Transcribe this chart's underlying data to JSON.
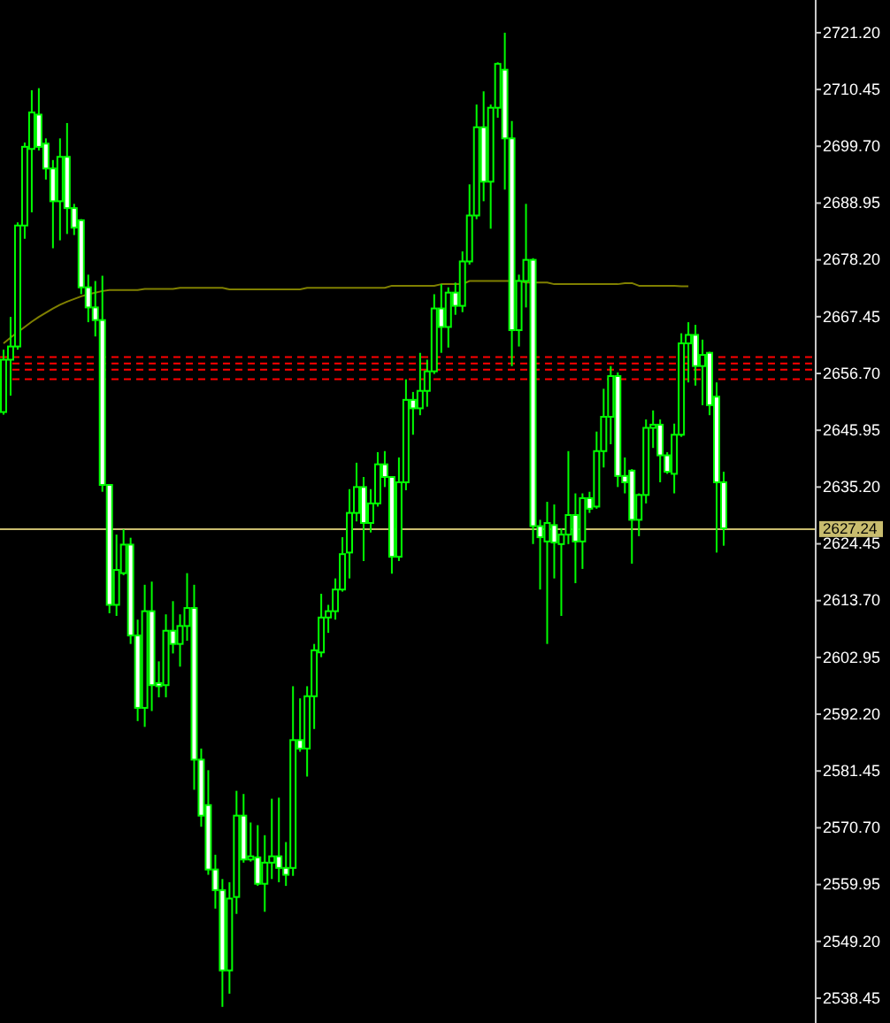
{
  "chart_data": {
    "type": "candlestick",
    "color": "#00ff00",
    "categories": [
      null,
      null,
      null,
      null,
      null,
      null,
      null,
      null,
      null,
      null,
      null,
      null,
      null,
      null,
      null,
      null,
      null,
      null,
      null,
      null,
      null,
      null,
      null,
      null,
      null,
      null,
      null,
      null,
      null,
      null,
      null,
      null,
      null,
      null,
      null,
      null,
      null,
      null,
      null,
      null,
      null,
      null,
      null,
      null,
      null,
      null,
      null,
      null,
      null,
      null,
      null,
      null,
      null,
      null,
      null,
      null,
      null,
      null,
      null,
      null,
      null,
      null,
      null,
      null,
      null,
      null,
      null,
      null,
      null,
      null,
      null,
      null,
      null,
      null,
      null,
      null,
      null,
      null,
      null,
      null,
      null,
      null,
      null,
      null,
      null,
      null,
      null,
      null,
      null,
      null,
      null,
      null,
      null,
      null,
      null,
      null,
      null,
      null,
      null,
      null,
      null,
      null,
      null
    ],
    "ohlc": [
      [
        2649.4,
        2661.2,
        2648.9,
        2659.3
      ],
      [
        2659.3,
        2667.4,
        2652.5,
        2661.8
      ],
      [
        2661.8,
        2685.3,
        2661.2,
        2684.7
      ],
      [
        2684.7,
        2700.4,
        2682.2,
        2699.6
      ],
      [
        2699.2,
        2710.3,
        2687.2,
        2706.1
      ],
      [
        2705.7,
        2710.7,
        2698.9,
        2699.6
      ],
      [
        2700.2,
        2701.2,
        2693.4,
        2695.5
      ],
      [
        2695.5,
        2697.1,
        2680.4,
        2689.3
      ],
      [
        2689.3,
        2701.2,
        2681.9,
        2697.7
      ],
      [
        2697.7,
        2704.1,
        2683.1,
        2688.0
      ],
      [
        2688.0,
        2688.8,
        2682.9,
        2684.3
      ],
      [
        2685.7,
        2685.9,
        2671.7,
        2673.0
      ],
      [
        2673.0,
        2675.4,
        2666.4,
        2669.2
      ],
      [
        2669.2,
        2674.2,
        2663.7,
        2666.8
      ],
      [
        2666.8,
        2675.2,
        2634.3,
        2635.6
      ],
      [
        2635.6,
        2635.6,
        2611.3,
        2612.9
      ],
      [
        2612.9,
        2626.2,
        2610.8,
        2619.5
      ],
      [
        2618.9,
        2627.2,
        2618.5,
        2624.3
      ],
      [
        2624.3,
        2625.6,
        2605.5,
        2607.1
      ],
      [
        2607.1,
        2610.1,
        2590.9,
        2593.4
      ],
      [
        2593.4,
        2616.7,
        2589.8,
        2611.7
      ],
      [
        2611.7,
        2617.3,
        2592.8,
        2597.7
      ],
      [
        2598.1,
        2602.2,
        2595.4,
        2597.5
      ],
      [
        2597.7,
        2611.1,
        2595.4,
        2608.0
      ],
      [
        2608.0,
        2613.6,
        2603.7,
        2605.5
      ],
      [
        2605.5,
        2611.1,
        2601.2,
        2608.9
      ],
      [
        2608.9,
        2618.9,
        2606.1,
        2612.3
      ],
      [
        2612.3,
        2616.7,
        2577.9,
        2583.6
      ],
      [
        2583.6,
        2585.7,
        2570.9,
        2573.0
      ],
      [
        2575.0,
        2581.6,
        2561.8,
        2562.8
      ],
      [
        2562.8,
        2565.6,
        2555.4,
        2558.9
      ],
      [
        2558.9,
        2561.0,
        2536.8,
        2543.7
      ],
      [
        2543.7,
        2560.4,
        2539.3,
        2557.3
      ],
      [
        2557.6,
        2577.7,
        2554.4,
        2573.0
      ],
      [
        2573.0,
        2577.1,
        2564.1,
        2564.7
      ],
      [
        2564.7,
        2571.7,
        2564.3,
        2565.3
      ],
      [
        2565.1,
        2571.2,
        2559.7,
        2560.1
      ],
      [
        2560.1,
        2569.3,
        2554.8,
        2564.1
      ],
      [
        2564.1,
        2576.2,
        2561.0,
        2565.3
      ],
      [
        2565.3,
        2576.4,
        2560.4,
        2563.1
      ],
      [
        2563.1,
        2568.0,
        2559.7,
        2561.8
      ],
      [
        2563.1,
        2597.5,
        2561.6,
        2587.3
      ],
      [
        2587.3,
        2595.2,
        2585.1,
        2585.7
      ],
      [
        2585.7,
        2597.5,
        2580.4,
        2595.6
      ],
      [
        2595.6,
        2605.5,
        2589.4,
        2604.3
      ],
      [
        2603.9,
        2615.0,
        2603.0,
        2610.5
      ],
      [
        2610.5,
        2612.9,
        2607.6,
        2611.7
      ],
      [
        2611.7,
        2617.9,
        2610.1,
        2615.8
      ],
      [
        2615.8,
        2625.7,
        2615.4,
        2622.5
      ],
      [
        2622.8,
        2634.8,
        2617.9,
        2630.3
      ],
      [
        2630.3,
        2639.8,
        2628.7,
        2635.2
      ],
      [
        2635.2,
        2637.1,
        2621.2,
        2628.4
      ],
      [
        2628.4,
        2634.8,
        2626.6,
        2632.1
      ],
      [
        2632.1,
        2641.8,
        2631.5,
        2639.5
      ],
      [
        2639.5,
        2642.0,
        2635.2,
        2637.1
      ],
      [
        2637.1,
        2637.1,
        2618.8,
        2622.0
      ],
      [
        2622.0,
        2640.8,
        2621.2,
        2636.1
      ],
      [
        2636.1,
        2655.6,
        2634.6,
        2651.7
      ],
      [
        2651.7,
        2653.2,
        2645.1,
        2650.1
      ],
      [
        2650.1,
        2660.6,
        2648.8,
        2653.4
      ],
      [
        2653.4,
        2659.3,
        2650.4,
        2657.1
      ],
      [
        2657.1,
        2671.7,
        2656.6,
        2669.0
      ],
      [
        2669.0,
        2673.6,
        2660.6,
        2665.5
      ],
      [
        2665.5,
        2673.0,
        2661.6,
        2672.0
      ],
      [
        2672.0,
        2673.9,
        2667.8,
        2669.5
      ],
      [
        2669.5,
        2679.8,
        2668.3,
        2677.9
      ],
      [
        2677.9,
        2692.5,
        2677.3,
        2686.6
      ],
      [
        2686.6,
        2707.6,
        2685.9,
        2703.3
      ],
      [
        2703.3,
        2710.1,
        2689.3,
        2693.0
      ],
      [
        2693.0,
        2707.6,
        2684.1,
        2707.0
      ],
      [
        2707.0,
        2715.6,
        2705.1,
        2715.3
      ],
      [
        2714.2,
        2721.2,
        2691.5,
        2701.2
      ],
      [
        2701.2,
        2704.5,
        2658.1,
        2664.9
      ],
      [
        2664.9,
        2675.4,
        2661.8,
        2674.2
      ],
      [
        2674.2,
        2688.8,
        2669.2,
        2678.2
      ],
      [
        2678.2,
        2678.5,
        2624.4,
        2627.8
      ],
      [
        2627.8,
        2629.0,
        2615.8,
        2625.7
      ],
      [
        2624.9,
        2632.4,
        2605.5,
        2628.4
      ],
      [
        2628.0,
        2631.9,
        2617.9,
        2624.7
      ],
      [
        2624.4,
        2627.4,
        2610.8,
        2626.2
      ],
      [
        2626.2,
        2642.0,
        2624.4,
        2629.9
      ],
      [
        2629.9,
        2634.0,
        2617.0,
        2624.9
      ],
      [
        2624.9,
        2634.0,
        2619.7,
        2633.1
      ],
      [
        2633.1,
        2634.3,
        2630.3,
        2631.1
      ],
      [
        2631.5,
        2645.7,
        2631.1,
        2642.0
      ],
      [
        2642.0,
        2653.8,
        2638.9,
        2648.5
      ],
      [
        2648.5,
        2658.1,
        2643.3,
        2656.2
      ],
      [
        2656.2,
        2656.9,
        2635.2,
        2637.3
      ],
      [
        2637.3,
        2640.8,
        2634.0,
        2636.1
      ],
      [
        2638.3,
        2638.6,
        2620.7,
        2629.0
      ],
      [
        2629.0,
        2634.0,
        2625.9,
        2633.7
      ],
      [
        2633.7,
        2648.0,
        2632.1,
        2646.4
      ],
      [
        2646.4,
        2649.7,
        2642.6,
        2647.0
      ],
      [
        2647.0,
        2648.0,
        2636.1,
        2641.2
      ],
      [
        2641.2,
        2641.8,
        2637.7,
        2638.1
      ],
      [
        2637.7,
        2647.2,
        2634.0,
        2645.1
      ],
      [
        2645.1,
        2664.3,
        2644.7,
        2662.4
      ],
      [
        2662.4,
        2666.4,
        2655.0,
        2664.0
      ],
      [
        2664.0,
        2665.9,
        2654.4,
        2658.1
      ],
      [
        2658.1,
        2663.1,
        2650.7,
        2660.2
      ],
      [
        2660.6,
        2660.8,
        2648.8,
        2650.7
      ],
      [
        2652.3,
        2655.0,
        2622.8,
        2636.1
      ],
      [
        2636.1,
        2638.1,
        2624.1,
        2627.4
      ]
    ],
    "series": [
      {
        "type": "line",
        "color": "#808000",
        "values": [
          2662.4,
          2663.5,
          2664.5,
          2665.5,
          2666.5,
          2667.4,
          2668.2,
          2669.0,
          2669.7,
          2670.3,
          2670.8,
          2671.3,
          2671.7,
          2672.0,
          2672.3,
          2672.5,
          2672.5,
          2672.5,
          2672.5,
          2672.5,
          2672.7,
          2672.7,
          2672.7,
          2672.7,
          2672.7,
          2672.9,
          2672.9,
          2672.9,
          2672.9,
          2672.9,
          2672.9,
          2672.9,
          2672.6,
          2672.6,
          2672.6,
          2672.6,
          2672.6,
          2672.6,
          2672.6,
          2672.6,
          2672.6,
          2672.6,
          2672.6,
          2672.9,
          2672.9,
          2672.9,
          2672.9,
          2672.9,
          2672.9,
          2672.9,
          2672.9,
          2672.9,
          2672.9,
          2672.9,
          2672.9,
          2673.3,
          2673.3,
          2673.3,
          2673.3,
          2673.3,
          2673.3,
          2673.3,
          2673.6,
          2673.6,
          2673.6,
          2673.6,
          2674.2,
          2674.2,
          2674.2,
          2674.2,
          2674.2,
          2674.2,
          2674.2,
          2674.2,
          2673.9,
          2673.9,
          2673.9,
          2673.9,
          2673.6,
          2673.6,
          2673.6,
          2673.6,
          2673.6,
          2673.6,
          2673.6,
          2673.6,
          2673.6,
          2673.6,
          2673.8,
          2673.8,
          2673.3,
          2673.3,
          2673.3,
          2673.3,
          2673.3,
          2673.3,
          2673.2,
          2673.2,
          null,
          null,
          null,
          null,
          null
        ]
      }
    ],
    "ylim": [
      2533.75,
      2727.39
    ],
    "yticks": [
      {
        "value": 2721.2,
        "label": "2721.20"
      },
      2710.45,
      {
        "value": 2699.7,
        "label": "2699.70"
      },
      2688.95,
      {
        "value": 2678.2,
        "label": "2678.20"
      },
      2667.45,
      {
        "value": 2656.7,
        "label": "2656.70"
      },
      2645.95,
      {
        "value": 2635.2,
        "label": "2635.20"
      },
      2624.45,
      {
        "value": 2613.7,
        "label": "2613.70"
      },
      2602.95,
      {
        "value": 2592.2,
        "label": "2592.20"
      },
      2581.45,
      {
        "value": 2570.7,
        "label": "2570.70"
      },
      2559.95,
      {
        "value": 2549.2,
        "label": "2549.20"
      },
      2538.45
    ],
    "tick_labels": "y",
    "ref_lines": [
      {
        "axis": "y",
        "value": 2659.8,
        "color": "#ff0000",
        "line_style": "dashed"
      },
      {
        "axis": "y",
        "value": 2658.6,
        "color": "#ff0000",
        "line_style": "dashed"
      },
      {
        "axis": "y",
        "value": 2657.4,
        "color": "#ff0000",
        "line_style": "dashed"
      },
      {
        "axis": "y",
        "value": 2655.6,
        "color": "#ff0000",
        "line_style": "dashed"
      },
      {
        "axis": "y",
        "value": 2627.24,
        "label": "2627.24",
        "color": "#c8bc6e",
        "line_style": "solid"
      }
    ]
  }
}
